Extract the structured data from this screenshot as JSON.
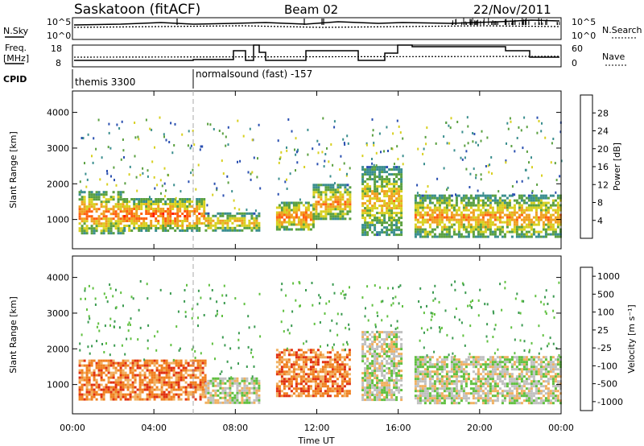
{
  "header": {
    "site": "Saskatoon (fitACF)",
    "beam": "Beam 02",
    "date": "22/Nov/2011"
  },
  "labels": {
    "nsky": "N.Sky",
    "nsearch": "N.Search",
    "freq_line1": "Freq.",
    "freq_line2": "[MHz]",
    "nave": "Nave",
    "cpid": "CPID",
    "cp1": "themis 3300",
    "cp2": "normalsound (fast) -157"
  },
  "ticks": {
    "nsky": [
      "10^5",
      "10^0"
    ],
    "freq": [
      "18",
      "8"
    ],
    "nave": [
      "60",
      "0"
    ],
    "range": [
      "4000",
      "3000",
      "2000",
      "1000"
    ],
    "time": [
      "00:00",
      "04:00",
      "08:00",
      "12:00",
      "16:00",
      "20:00",
      "00:00"
    ]
  },
  "chart_data": [
    {
      "type": "heatmap",
      "title": "",
      "xlabel": "Time UT",
      "ylabel": "Slant Range [km]",
      "xlim": [
        "00:00",
        "24:00"
      ],
      "ylim": [
        180,
        4600
      ],
      "colorbar": {
        "label": "Power [dB]",
        "ticks": [
          4,
          8,
          12,
          16,
          20,
          24,
          28
        ],
        "range": [
          0,
          32
        ]
      },
      "colors": [
        "#1a1aff",
        "#2a4fb0",
        "#3a8e8e",
        "#5aa040",
        "#d8d020",
        "#f0a020",
        "#ff6010",
        "#ff1a00"
      ],
      "echo_regions": [
        {
          "t": [
            0.3,
            2.5
          ],
          "range_km": [
            600,
            1800
          ],
          "level_db": 26
        },
        {
          "t": [
            2.5,
            6.5
          ],
          "range_km": [
            700,
            1600
          ],
          "level_db": 28
        },
        {
          "t": [
            6.5,
            9.2
          ],
          "range_km": [
            700,
            1200
          ],
          "level_db": 22
        },
        {
          "t": [
            10.0,
            11.8
          ],
          "range_km": [
            700,
            1500
          ],
          "level_db": 26
        },
        {
          "t": [
            11.8,
            13.6
          ],
          "range_km": [
            1000,
            2000
          ],
          "level_db": 24
        },
        {
          "t": [
            14.2,
            16.2
          ],
          "range_km": [
            600,
            2500
          ],
          "level_db": 22
        },
        {
          "t": [
            16.8,
            24.0
          ],
          "range_km": [
            500,
            1700
          ],
          "level_db": 24
        }
      ]
    },
    {
      "type": "heatmap",
      "title": "",
      "xlabel": "Time UT",
      "ylabel": "Slant Range [km]",
      "xlim": [
        "00:00",
        "24:00"
      ],
      "ylim": [
        180,
        4600
      ],
      "colorbar": {
        "label": "Velocity [m s⁻¹]",
        "ticks": [
          "1000",
          "500",
          "100",
          "25",
          "-25",
          "-100",
          "-500",
          "-1000"
        ]
      },
      "colors": [
        "#2040c0",
        "#3070b0",
        "#3a9a50",
        "#60c040",
        "#c0c0c0",
        "#f0b060",
        "#f08020",
        "#e03010",
        "#ff0000"
      ],
      "echo_regions": [
        {
          "t": [
            0.3,
            6.5
          ],
          "range_km": [
            600,
            1700
          ],
          "velocity": -100
        },
        {
          "t": [
            6.5,
            9.2
          ],
          "range_km": [
            500,
            1200
          ],
          "velocity": 0
        },
        {
          "t": [
            10.0,
            13.6
          ],
          "range_km": [
            700,
            2000
          ],
          "velocity": -100
        },
        {
          "t": [
            14.2,
            16.2
          ],
          "range_km": [
            600,
            2500
          ],
          "velocity": 0
        },
        {
          "t": [
            16.8,
            24.0
          ],
          "range_km": [
            500,
            1800
          ],
          "velocity": 0
        }
      ]
    }
  ]
}
